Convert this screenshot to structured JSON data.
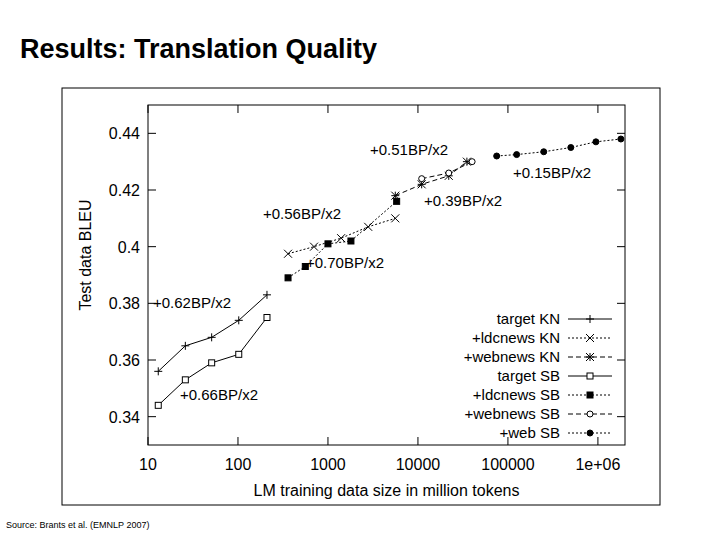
{
  "chart_data": {
    "type": "line",
    "title": "Results: Translation Quality",
    "source": "Source: Brants et al. (EMNLP 2007)",
    "x_label": "LM training data size in million tokens",
    "y_label": "Test data BLEU",
    "log": "x",
    "grid": false,
    "legend": "bottom-right",
    "xlim": [
      10,
      2000000
    ],
    "ylim": [
      0.33,
      0.45
    ],
    "xticks": [
      10,
      100,
      1000,
      10000,
      100000,
      {
        "value": 1000000,
        "label": "1e+06"
      }
    ],
    "yticks": [
      0.34,
      0.36,
      0.38,
      0.4,
      0.42,
      0.44
    ],
    "annotations": [
      "+0.51BP/x2",
      "+0.15BP/x2",
      "+0.56BP/x2",
      "+0.39BP/x2",
      "+0.70BP/x2",
      "+0.62BP/x2",
      "+0.66BP/x2"
    ],
    "series": [
      {
        "name": "target KN",
        "color": "#000000",
        "marker": "plus",
        "line_style": "solid",
        "x": [
          13,
          26,
          51,
          102,
          210
        ],
        "values": [
          0.356,
          0.365,
          0.368,
          0.374,
          0.383
        ]
      },
      {
        "name": "+ldcnews KN",
        "color": "#000000",
        "marker": "cross",
        "line_style": "dotted",
        "x": [
          360,
          700,
          1400,
          2800,
          5600
        ],
        "values": [
          0.3975,
          0.4,
          0.403,
          0.407,
          0.41
        ]
      },
      {
        "name": "+webnews KN",
        "color": "#000000",
        "marker": "star",
        "line_style": "dashed",
        "x": [
          5600,
          11000,
          22000,
          35000
        ],
        "values": [
          0.418,
          0.422,
          0.425,
          0.43
        ]
      },
      {
        "name": "target SB",
        "color": "#000000",
        "marker": "square-open",
        "line_style": "solid",
        "x": [
          13,
          26,
          51,
          102,
          210
        ],
        "values": [
          0.344,
          0.353,
          0.359,
          0.362,
          0.375
        ]
      },
      {
        "name": "+ldcnews SB",
        "color": "#000000",
        "marker": "square-filled",
        "line_style": "dotted",
        "x": [
          360,
          560,
          1000,
          1800,
          5800
        ],
        "values": [
          0.389,
          0.393,
          0.401,
          0.402,
          0.416
        ]
      },
      {
        "name": "+webnews SB",
        "color": "#000000",
        "marker": "circle-open",
        "line_style": "dashed",
        "x": [
          11000,
          22000,
          40000
        ],
        "values": [
          0.424,
          0.426,
          0.43
        ]
      },
      {
        "name": "+web SB",
        "color": "#000000",
        "marker": "circle-filled",
        "line_style": "dotted",
        "x": [
          75000,
          125000,
          250000,
          500000,
          950000,
          1800000
        ],
        "values": [
          0.432,
          0.4325,
          0.4335,
          0.435,
          0.437,
          0.438
        ]
      }
    ]
  }
}
